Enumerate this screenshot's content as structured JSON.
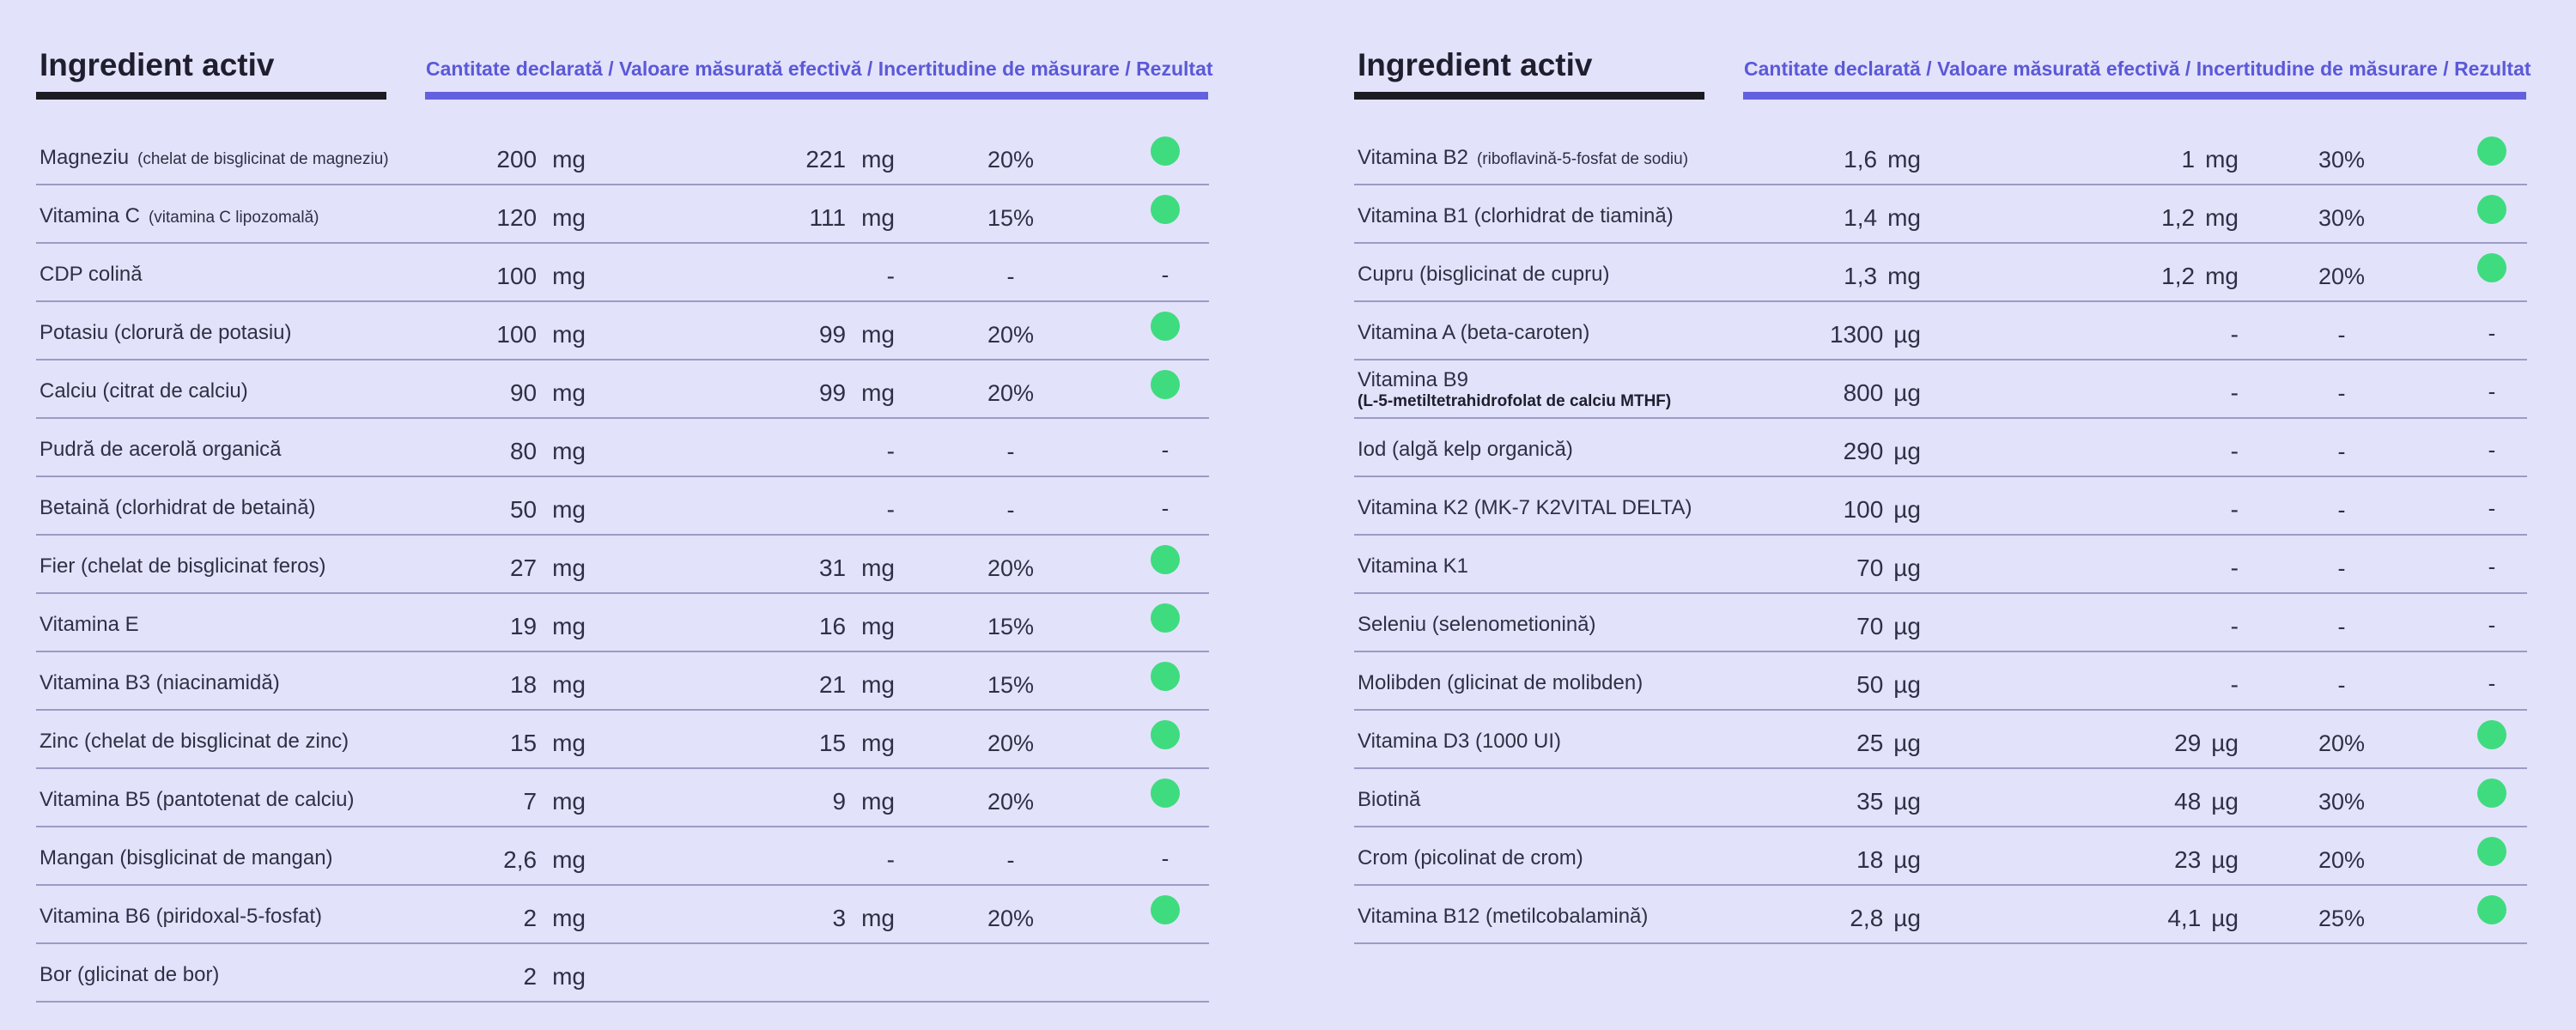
{
  "header": {
    "title": "Ingredient activ",
    "columns": "Cantitate declarată / Valoare măsurată efectivă / Incertitudine de măsurare / Rezultat"
  },
  "colors": {
    "background": "#e3e2fb",
    "accent": "#6361de",
    "pass": "#3fdc7f"
  },
  "left": {
    "rows": [
      {
        "name": "Magneziu",
        "detail": "(chelat de bisglicinat de magneziu)",
        "decl_val": "200",
        "decl_unit": "mg",
        "meas_val": "221",
        "meas_unit": "mg",
        "unc": "20%",
        "result": "pass"
      },
      {
        "name": "Vitamina C",
        "detail": "(vitamina C lipozomală)",
        "decl_val": "120",
        "decl_unit": "mg",
        "meas_val": "111",
        "meas_unit": "mg",
        "unc": "15%",
        "result": "pass"
      },
      {
        "name": "CDP colină",
        "detail": "",
        "decl_val": "100",
        "decl_unit": "mg",
        "meas_val": "-",
        "meas_unit": "",
        "unc": "-",
        "result": "-"
      },
      {
        "name": "Potasiu (clorură de potasiu)",
        "detail": "",
        "decl_val": "100",
        "decl_unit": "mg",
        "meas_val": "99",
        "meas_unit": "mg",
        "unc": "20%",
        "result": "pass"
      },
      {
        "name": "Calciu (citrat de calciu)",
        "detail": "",
        "decl_val": "90",
        "decl_unit": "mg",
        "meas_val": "99",
        "meas_unit": "mg",
        "unc": "20%",
        "result": "pass"
      },
      {
        "name": "Pudră de acerolă organică",
        "detail": "",
        "decl_val": "80",
        "decl_unit": "mg",
        "meas_val": "-",
        "meas_unit": "",
        "unc": "-",
        "result": "-"
      },
      {
        "name": "Betaină (clorhidrat de betaină)",
        "detail": "",
        "decl_val": "50",
        "decl_unit": "mg",
        "meas_val": "-",
        "meas_unit": "",
        "unc": "-",
        "result": "-"
      },
      {
        "name": "Fier  (chelat de bisglicinat feros)",
        "detail": "",
        "decl_val": "27",
        "decl_unit": "mg",
        "meas_val": "31",
        "meas_unit": "mg",
        "unc": "20%",
        "result": "pass"
      },
      {
        "name": "Vitamina E",
        "detail": "",
        "decl_val": "19",
        "decl_unit": "mg",
        "meas_val": "16",
        "meas_unit": "mg",
        "unc": "15%",
        "result": "pass"
      },
      {
        "name": "Vitamina B3 (niacinamidă)",
        "detail": "",
        "decl_val": "18",
        "decl_unit": "mg",
        "meas_val": "21",
        "meas_unit": "mg",
        "unc": "15%",
        "result": "pass"
      },
      {
        "name": "Zinc  (chelat de bisglicinat de zinc)",
        "detail": "",
        "decl_val": "15",
        "decl_unit": "mg",
        "meas_val": "15",
        "meas_unit": "mg",
        "unc": "20%",
        "result": "pass"
      },
      {
        "name": "Vitamina B5  (pantotenat de calciu)",
        "detail": "",
        "decl_val": "7",
        "decl_unit": "mg",
        "meas_val": "9",
        "meas_unit": "mg",
        "unc": "20%",
        "result": "pass"
      },
      {
        "name": "Mangan  (bisglicinat de mangan)",
        "detail": "",
        "decl_val": "2,6",
        "decl_unit": "mg",
        "meas_val": "-",
        "meas_unit": "",
        "unc": "-",
        "result": "-"
      },
      {
        "name": "Vitamina B6  (piridoxal-5-fosfat)",
        "detail": "",
        "decl_val": "2",
        "decl_unit": "mg",
        "meas_val": "3",
        "meas_unit": "mg",
        "unc": "20%",
        "result": "pass"
      },
      {
        "name": "Bor (glicinat de bor)",
        "detail": "",
        "decl_val": "2",
        "decl_unit": "mg",
        "meas_val": "",
        "meas_unit": "",
        "unc": "",
        "result": ""
      }
    ]
  },
  "right": {
    "rows": [
      {
        "name": "Vitamina B2",
        "detail": "(riboflavină-5-fosfat de sodiu)",
        "decl_val": "1,6",
        "decl_unit": "mg",
        "meas_val": "1",
        "meas_unit": "mg",
        "unc": "30%",
        "result": "pass"
      },
      {
        "name": "Vitamina B1  (clorhidrat de tiamină)",
        "detail": "",
        "decl_val": "1,4",
        "decl_unit": "mg",
        "meas_val": "1,2",
        "meas_unit": "mg",
        "unc": "30%",
        "result": "pass"
      },
      {
        "name": "Cupru (bisglicinat de cupru)",
        "detail": "",
        "decl_val": "1,3",
        "decl_unit": "mg",
        "meas_val": "1,2",
        "meas_unit": "mg",
        "unc": "20%",
        "result": "pass"
      },
      {
        "name": "Vitamina A (beta-caroten)",
        "detail": "",
        "decl_val": "1300",
        "decl_unit": "µg",
        "meas_val": "-",
        "meas_unit": "",
        "unc": "-",
        "result": "-"
      },
      {
        "name": "Vitamina B9",
        "line2": "(L-5-metiltetrahidrofolat de calciu MTHF)",
        "detail": "",
        "decl_val": "800",
        "decl_unit": "µg",
        "meas_val": "-",
        "meas_unit": "",
        "unc": "-",
        "result": "-"
      },
      {
        "name": "Iod (algă kelp organică)",
        "detail": "",
        "decl_val": "290",
        "decl_unit": "µg",
        "meas_val": "-",
        "meas_unit": "",
        "unc": "-",
        "result": "-"
      },
      {
        "name": "Vitamina K2 (MK-7 K2VITAL DELTA)",
        "detail": "",
        "decl_val": "100",
        "decl_unit": "µg",
        "meas_val": "-",
        "meas_unit": "",
        "unc": "-",
        "result": "-"
      },
      {
        "name": "Vitamina K1",
        "detail": "",
        "decl_val": "70",
        "decl_unit": "µg",
        "meas_val": "-",
        "meas_unit": "",
        "unc": "-",
        "result": "-"
      },
      {
        "name": "Seleniu (selenometionină)",
        "detail": "",
        "decl_val": "70",
        "decl_unit": "µg",
        "meas_val": "-",
        "meas_unit": "",
        "unc": "-",
        "result": "-"
      },
      {
        "name": "Molibden (glicinat de molibden)",
        "detail": "",
        "decl_val": "50",
        "decl_unit": "µg",
        "meas_val": "-",
        "meas_unit": "",
        "unc": "-",
        "result": "-"
      },
      {
        "name": "Vitamina D3 (1000 UI)",
        "detail": "",
        "decl_val": "25",
        "decl_unit": "µg",
        "meas_val": "29",
        "meas_unit": "µg",
        "unc": "20%",
        "result": "pass"
      },
      {
        "name": "Biotină",
        "detail": "",
        "decl_val": "35",
        "decl_unit": "µg",
        "meas_val": "48",
        "meas_unit": "µg",
        "unc": "30%",
        "result": "pass"
      },
      {
        "name": "Crom (picolinat de crom)",
        "detail": "",
        "decl_val": "18",
        "decl_unit": "µg",
        "meas_val": "23",
        "meas_unit": "µg",
        "unc": "20%",
        "result": "pass"
      },
      {
        "name": "Vitamina B12 (metilcobalamină)",
        "detail": "",
        "decl_val": "2,8",
        "decl_unit": "µg",
        "meas_val": "4,1",
        "meas_unit": "µg",
        "unc": "25%",
        "result": "pass"
      }
    ]
  }
}
